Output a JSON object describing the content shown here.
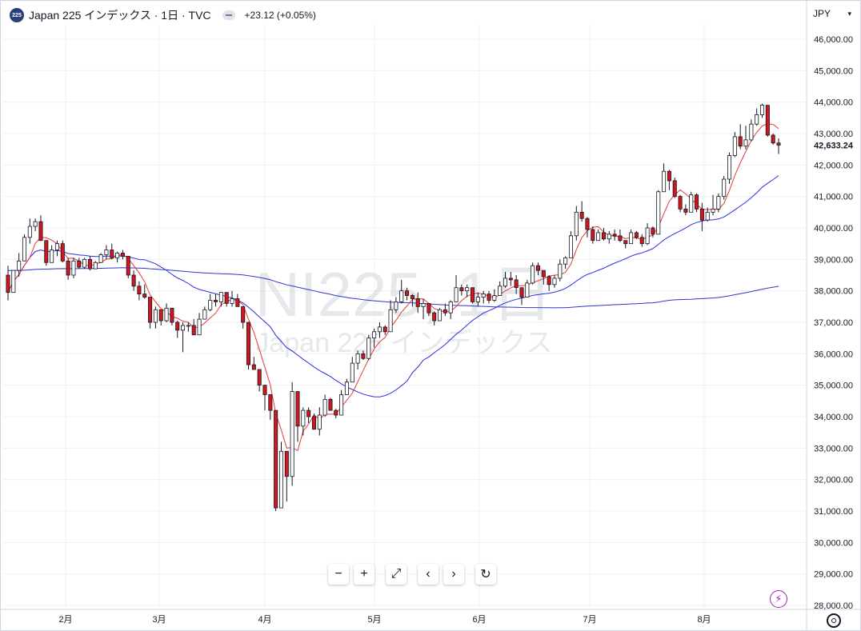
{
  "header": {
    "logo_text": "225",
    "title": "Japan 225 インデックス · 1日 · TVC",
    "change": "+23.12 (+0.05%)"
  },
  "watermark": {
    "symbol": "NI225, 1日",
    "name": "Japan 225 インデックス"
  },
  "currency": {
    "label": "JPY",
    "chevron": "chevron-down-icon"
  },
  "price_badge": "42,633.24",
  "toolbar": {
    "zoom_out": "−",
    "zoom_in": "+",
    "fullscreen": "⤢",
    "scroll_left": "‹",
    "scroll_right": "›",
    "reset": "↻"
  },
  "colors": {
    "up": "#ffffff",
    "up_border": "#131722",
    "down": "#d3161d",
    "down_border": "#131722",
    "ma_short": "#e53935",
    "ma_long": "#2a2ee0",
    "ma_200": "#3038c8",
    "grid": "#eef0f3"
  },
  "chart_data": {
    "type": "candlestick",
    "title": "Japan 225 インデックス · 1日 · TVC",
    "ylim": [
      28000,
      46500
    ],
    "y_ticks": [
      "28,000.00",
      "29,000.00",
      "30,000.00",
      "31,000.00",
      "32,000.00",
      "33,000.00",
      "34,000.00",
      "35,000.00",
      "36,000.00",
      "37,000.00",
      "38,000.00",
      "39,000.00",
      "40,000.00",
      "41,000.00",
      "42,000.00",
      "43,000.00",
      "44,000.00",
      "45,000.00",
      "46,000.00"
    ],
    "x_ticks": [
      "2月",
      "3月",
      "4月",
      "5月",
      "6月",
      "7月",
      "8月"
    ],
    "last_price": 42633.24,
    "candles": [
      [
        38500,
        38800,
        37700,
        37950
      ],
      [
        37950,
        38650,
        37950,
        38650
      ],
      [
        38650,
        39200,
        38450,
        38950
      ],
      [
        38950,
        39800,
        38950,
        39700
      ],
      [
        39700,
        40300,
        39500,
        40050
      ],
      [
        40050,
        40300,
        39900,
        40200
      ],
      [
        40200,
        40400,
        39600,
        39600
      ],
      [
        39600,
        39600,
        38800,
        38900
      ],
      [
        38900,
        39450,
        38900,
        39300
      ],
      [
        39300,
        39600,
        39100,
        39500
      ],
      [
        39500,
        39600,
        38900,
        38950
      ],
      [
        38950,
        39050,
        38350,
        38500
      ],
      [
        38500,
        39050,
        38400,
        38950
      ],
      [
        38950,
        39050,
        38700,
        38750
      ],
      [
        38750,
        39050,
        38700,
        39000
      ],
      [
        39000,
        39100,
        38650,
        38700
      ],
      [
        38700,
        38950,
        38700,
        38900
      ],
      [
        38900,
        39200,
        38900,
        39150
      ],
      [
        39150,
        39450,
        39000,
        39300
      ],
      [
        39300,
        39500,
        39000,
        39050
      ],
      [
        39050,
        39250,
        38900,
        39200
      ],
      [
        39200,
        39300,
        39000,
        39100
      ],
      [
        39100,
        39100,
        38400,
        38500
      ],
      [
        38500,
        38650,
        38000,
        38150
      ],
      [
        38150,
        38300,
        37700,
        37900
      ],
      [
        37900,
        38200,
        37750,
        37800
      ],
      [
        37800,
        37800,
        36800,
        37000
      ],
      [
        37000,
        37500,
        36800,
        37400
      ],
      [
        37400,
        37400,
        36900,
        37050
      ],
      [
        37050,
        37600,
        37000,
        37450
      ],
      [
        37450,
        37450,
        36900,
        37000
      ],
      [
        37000,
        37050,
        36500,
        36750
      ],
      [
        36750,
        37000,
        36050,
        36900
      ],
      [
        36900,
        37000,
        36700,
        36900
      ],
      [
        36900,
        37100,
        36600,
        36600
      ],
      [
        36600,
        37300,
        36600,
        37100
      ],
      [
        37100,
        37500,
        37100,
        37400
      ],
      [
        37400,
        37900,
        37350,
        37700
      ],
      [
        37700,
        37900,
        37500,
        37650
      ],
      [
        37650,
        37950,
        37500,
        37950
      ],
      [
        37950,
        37950,
        37500,
        37600
      ],
      [
        37600,
        38000,
        37500,
        37750
      ],
      [
        37750,
        37900,
        37500,
        37500
      ],
      [
        37500,
        37500,
        36800,
        37000
      ],
      [
        37000,
        37000,
        35500,
        35650
      ],
      [
        35650,
        35900,
        35500,
        35500
      ],
      [
        35500,
        35500,
        34800,
        35000
      ],
      [
        35000,
        35000,
        34200,
        34700
      ],
      [
        34700,
        34700,
        33900,
        34200
      ],
      [
        34200,
        34200,
        31000,
        31100
      ],
      [
        31100,
        33200,
        31100,
        32900
      ],
      [
        32900,
        32900,
        31300,
        32100
      ],
      [
        32100,
        35100,
        31800,
        34800
      ],
      [
        34800,
        34800,
        33200,
        33700
      ],
      [
        33700,
        34300,
        33400,
        34200
      ],
      [
        34200,
        34300,
        33800,
        34000
      ],
      [
        34000,
        34100,
        33600,
        33600
      ],
      [
        33600,
        34300,
        33400,
        34050
      ],
      [
        34050,
        34700,
        34000,
        34550
      ],
      [
        34550,
        34600,
        34200,
        34200
      ],
      [
        34200,
        34250,
        33950,
        34050
      ],
      [
        34050,
        34850,
        34050,
        34700
      ],
      [
        34700,
        35200,
        34700,
        35100
      ],
      [
        35100,
        35900,
        35100,
        35700
      ],
      [
        35700,
        36100,
        35500,
        36000
      ],
      [
        36000,
        36100,
        35800,
        35850
      ],
      [
        35850,
        36600,
        35800,
        36500
      ],
      [
        36500,
        36800,
        36200,
        36700
      ],
      [
        36700,
        37000,
        36500,
        36850
      ],
      [
        36850,
        36900,
        36600,
        36700
      ],
      [
        36700,
        37700,
        36700,
        37400
      ],
      [
        37400,
        37800,
        37300,
        37650
      ],
      [
        37650,
        38350,
        37600,
        38000
      ],
      [
        38000,
        38100,
        37700,
        37850
      ],
      [
        37850,
        37900,
        37500,
        37750
      ],
      [
        37750,
        37950,
        37300,
        37500
      ],
      [
        37500,
        37750,
        37100,
        37600
      ],
      [
        37600,
        37600,
        37200,
        37300
      ],
      [
        37300,
        37350,
        36900,
        37050
      ],
      [
        37050,
        37450,
        37050,
        37400
      ],
      [
        37400,
        37600,
        37200,
        37300
      ],
      [
        37300,
        37700,
        37100,
        37650
      ],
      [
        37650,
        38500,
        37650,
        38100
      ],
      [
        38100,
        38200,
        37850,
        38000
      ],
      [
        38000,
        38200,
        37800,
        38100
      ],
      [
        38100,
        38100,
        37600,
        37650
      ],
      [
        37650,
        37950,
        37500,
        37800
      ],
      [
        37800,
        38000,
        37600,
        37900
      ],
      [
        37900,
        38000,
        37600,
        37700
      ],
      [
        37700,
        38050,
        37650,
        37850
      ],
      [
        37850,
        38300,
        37850,
        38150
      ],
      [
        38150,
        38600,
        38100,
        38400
      ],
      [
        38400,
        38600,
        38150,
        38350
      ],
      [
        38350,
        38500,
        37900,
        38100
      ],
      [
        38100,
        38100,
        37550,
        37800
      ],
      [
        37800,
        38350,
        37800,
        38250
      ],
      [
        38250,
        38900,
        38200,
        38800
      ],
      [
        38800,
        38900,
        38500,
        38650
      ],
      [
        38650,
        38650,
        38200,
        38450
      ],
      [
        38450,
        38500,
        38000,
        38200
      ],
      [
        38200,
        38500,
        38100,
        38400
      ],
      [
        38400,
        39000,
        38300,
        38850
      ],
      [
        38850,
        39100,
        38700,
        39050
      ],
      [
        39050,
        39900,
        39050,
        39750
      ],
      [
        39750,
        40700,
        39600,
        40500
      ],
      [
        40500,
        40850,
        40200,
        40300
      ],
      [
        40300,
        40350,
        39700,
        39950
      ],
      [
        39950,
        40050,
        39500,
        39600
      ],
      [
        39600,
        39950,
        39600,
        39850
      ],
      [
        39850,
        40000,
        39600,
        39650
      ],
      [
        39650,
        39900,
        39500,
        39800
      ],
      [
        39800,
        39950,
        39600,
        39750
      ],
      [
        39750,
        39950,
        39550,
        39600
      ],
      [
        39600,
        39600,
        39350,
        39500
      ],
      [
        39500,
        39950,
        39500,
        39850
      ],
      [
        39850,
        39900,
        39650,
        39700
      ],
      [
        39700,
        39800,
        39400,
        39500
      ],
      [
        39500,
        40150,
        39450,
        40000
      ],
      [
        40000,
        40050,
        39700,
        39800
      ],
      [
        39800,
        41200,
        39800,
        41150
      ],
      [
        41150,
        42050,
        41150,
        41800
      ],
      [
        41800,
        41850,
        41200,
        41500
      ],
      [
        41500,
        41600,
        40950,
        41000
      ],
      [
        41000,
        41050,
        40500,
        40600
      ],
      [
        40600,
        40750,
        40400,
        40500
      ],
      [
        40500,
        41150,
        40500,
        41050
      ],
      [
        41050,
        41100,
        40500,
        40600
      ],
      [
        40600,
        40800,
        39900,
        40250
      ],
      [
        40250,
        40650,
        40200,
        40500
      ],
      [
        40500,
        41050,
        40400,
        40600
      ],
      [
        40600,
        41100,
        40500,
        41000
      ],
      [
        41000,
        41650,
        40900,
        41550
      ],
      [
        41550,
        42400,
        41400,
        42300
      ],
      [
        42300,
        43050,
        42250,
        42900
      ],
      [
        42900,
        43300,
        42500,
        42600
      ],
      [
        42600,
        43250,
        42500,
        42800
      ],
      [
        42800,
        43450,
        42750,
        43300
      ],
      [
        43300,
        43800,
        43250,
        43600
      ],
      [
        43600,
        43950,
        43500,
        43900
      ],
      [
        43900,
        43900,
        42900,
        42950
      ],
      [
        42950,
        43000,
        42650,
        42700
      ],
      [
        42700,
        42850,
        42350,
        42633
      ]
    ],
    "ma_short_end": [
      42950,
      42820
    ],
    "ma_long_end": 41600,
    "ma_200_end": 38500
  }
}
